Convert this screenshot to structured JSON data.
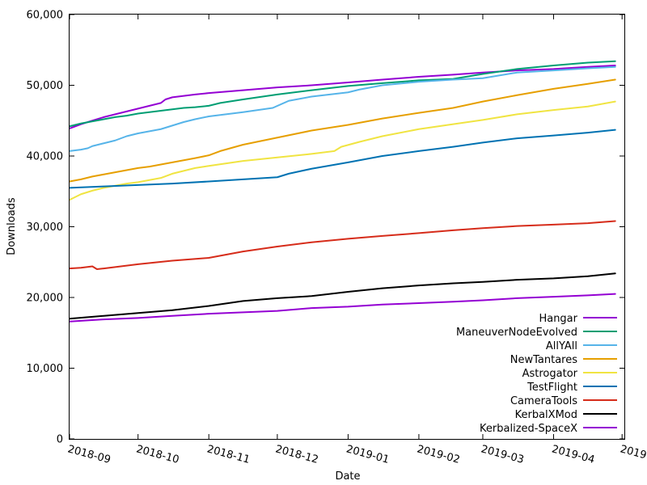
{
  "chart_data": {
    "type": "line",
    "title": "",
    "xlabel": "Date",
    "ylabel": "Downloads",
    "x_type": "date",
    "xlim": [
      "2018-08-31",
      "2019-05-01"
    ],
    "ylim": [
      0,
      60000
    ],
    "x_ticks": [
      {
        "value": "2018-08-31",
        "label": "2018-09"
      },
      {
        "value": "2018-09-30",
        "label": "2018-10"
      },
      {
        "value": "2018-10-31",
        "label": "2018-11"
      },
      {
        "value": "2018-11-30",
        "label": "2018-12"
      },
      {
        "value": "2018-12-31",
        "label": "2019-01"
      },
      {
        "value": "2019-01-31",
        "label": "2019-02"
      },
      {
        "value": "2019-02-28",
        "label": "2019-03"
      },
      {
        "value": "2019-03-31",
        "label": "2019-04"
      },
      {
        "value": "2019-04-30",
        "label": "2019"
      }
    ],
    "y_ticks": [
      {
        "value": 0,
        "label": "0"
      },
      {
        "value": 10000,
        "label": "10,000"
      },
      {
        "value": 20000,
        "label": "20,000"
      },
      {
        "value": 30000,
        "label": "30,000"
      },
      {
        "value": 40000,
        "label": "40,000"
      },
      {
        "value": 50000,
        "label": "50,000"
      },
      {
        "value": 60000,
        "label": "60,000"
      }
    ],
    "grid": false,
    "legend_position": "bottom-right",
    "series": [
      {
        "name": "Hangar",
        "color": "#9400d3",
        "x": [
          "2018-08-31",
          "2018-09-05",
          "2018-09-10",
          "2018-09-15",
          "2018-09-20",
          "2018-09-25",
          "2018-09-30",
          "2018-10-05",
          "2018-10-10",
          "2018-10-12",
          "2018-10-15",
          "2018-10-20",
          "2018-10-25",
          "2018-10-31",
          "2018-11-15",
          "2018-11-30",
          "2018-12-15",
          "2018-12-31",
          "2019-01-15",
          "2019-01-31",
          "2019-02-15",
          "2019-02-28",
          "2019-03-15",
          "2019-03-31",
          "2019-04-15",
          "2019-04-27"
        ],
        "y": [
          43900,
          44500,
          45000,
          45500,
          45900,
          46300,
          46700,
          47100,
          47500,
          48000,
          48300,
          48500,
          48700,
          48900,
          49300,
          49700,
          50000,
          50400,
          50800,
          51200,
          51500,
          51800,
          52100,
          52300,
          52600,
          52800
        ]
      },
      {
        "name": "ManeuverNodeEvolved",
        "color": "#009e73",
        "x": [
          "2018-08-31",
          "2018-09-05",
          "2018-09-10",
          "2018-09-15",
          "2018-09-20",
          "2018-09-25",
          "2018-09-30",
          "2018-10-05",
          "2018-10-10",
          "2018-10-15",
          "2018-10-20",
          "2018-10-25",
          "2018-10-31",
          "2018-11-05",
          "2018-11-15",
          "2018-11-30",
          "2018-12-15",
          "2018-12-31",
          "2019-01-15",
          "2019-01-31",
          "2019-02-15",
          "2019-02-28",
          "2019-03-15",
          "2019-03-31",
          "2019-04-15",
          "2019-04-27"
        ],
        "y": [
          44200,
          44600,
          44900,
          45200,
          45500,
          45700,
          46000,
          46200,
          46400,
          46600,
          46800,
          46900,
          47100,
          47500,
          48000,
          48700,
          49300,
          49900,
          50300,
          50700,
          50900,
          51600,
          52300,
          52800,
          53200,
          53400
        ]
      },
      {
        "name": "AllYAll",
        "color": "#56b4e9",
        "x": [
          "2018-08-31",
          "2018-09-05",
          "2018-09-08",
          "2018-09-10",
          "2018-09-15",
          "2018-09-20",
          "2018-09-25",
          "2018-09-30",
          "2018-10-05",
          "2018-10-10",
          "2018-10-15",
          "2018-10-20",
          "2018-10-25",
          "2018-10-31",
          "2018-11-15",
          "2018-11-28",
          "2018-12-05",
          "2018-12-15",
          "2018-12-31",
          "2019-01-05",
          "2019-01-15",
          "2019-01-31",
          "2019-02-15",
          "2019-02-28",
          "2019-03-15",
          "2019-03-31",
          "2019-04-15",
          "2019-04-27"
        ],
        "y": [
          40700,
          40900,
          41100,
          41400,
          41800,
          42200,
          42800,
          43200,
          43500,
          43800,
          44300,
          44800,
          45200,
          45600,
          46200,
          46800,
          47800,
          48400,
          49000,
          49400,
          50000,
          50500,
          50800,
          51000,
          51800,
          52100,
          52400,
          52600
        ]
      },
      {
        "name": "NewTantares",
        "color": "#e69f00",
        "x": [
          "2018-08-31",
          "2018-09-05",
          "2018-09-10",
          "2018-09-15",
          "2018-09-20",
          "2018-09-25",
          "2018-09-30",
          "2018-10-05",
          "2018-10-10",
          "2018-10-15",
          "2018-10-20",
          "2018-10-25",
          "2018-10-31",
          "2018-11-05",
          "2018-11-15",
          "2018-11-30",
          "2018-12-15",
          "2018-12-31",
          "2019-01-15",
          "2019-01-31",
          "2019-02-15",
          "2019-02-28",
          "2019-03-15",
          "2019-03-31",
          "2019-04-15",
          "2019-04-27"
        ],
        "y": [
          36400,
          36700,
          37100,
          37400,
          37700,
          38000,
          38300,
          38500,
          38800,
          39100,
          39400,
          39700,
          40100,
          40700,
          41600,
          42600,
          43600,
          44400,
          45300,
          46100,
          46800,
          47700,
          48600,
          49500,
          50200,
          50800
        ]
      },
      {
        "name": "Astrogator",
        "color": "#f0e442",
        "x": [
          "2018-08-31",
          "2018-09-05",
          "2018-09-10",
          "2018-09-15",
          "2018-09-20",
          "2018-09-25",
          "2018-09-30",
          "2018-10-05",
          "2018-10-10",
          "2018-10-15",
          "2018-10-20",
          "2018-10-25",
          "2018-10-31",
          "2018-11-15",
          "2018-11-30",
          "2018-12-15",
          "2018-12-25",
          "2018-12-28",
          "2019-01-05",
          "2019-01-15",
          "2019-01-31",
          "2019-02-15",
          "2019-02-28",
          "2019-03-15",
          "2019-03-31",
          "2019-04-15",
          "2019-04-27"
        ],
        "y": [
          33800,
          34600,
          35100,
          35500,
          35800,
          36100,
          36300,
          36600,
          36900,
          37500,
          37900,
          38300,
          38600,
          39300,
          39800,
          40300,
          40700,
          41300,
          42000,
          42800,
          43800,
          44500,
          45100,
          45900,
          46500,
          47000,
          47700
        ]
      },
      {
        "name": "TestFlight",
        "color": "#0072b2",
        "x": [
          "2018-08-31",
          "2018-09-15",
          "2018-09-30",
          "2018-10-15",
          "2018-10-31",
          "2018-11-15",
          "2018-11-30",
          "2018-12-05",
          "2018-12-15",
          "2018-12-31",
          "2019-01-15",
          "2019-01-31",
          "2019-02-15",
          "2019-02-28",
          "2019-03-15",
          "2019-03-31",
          "2019-04-15",
          "2019-04-27"
        ],
        "y": [
          35500,
          35700,
          35900,
          36100,
          36400,
          36700,
          37000,
          37500,
          38200,
          39100,
          40000,
          40700,
          41300,
          41900,
          42500,
          42900,
          43300,
          43700
        ]
      },
      {
        "name": "CameraTools",
        "color": "#d62c1a",
        "x": [
          "2018-08-31",
          "2018-09-05",
          "2018-09-10",
          "2018-09-12",
          "2018-09-15",
          "2018-09-20",
          "2018-09-30",
          "2018-10-15",
          "2018-10-31",
          "2018-11-15",
          "2018-11-30",
          "2018-12-15",
          "2018-12-31",
          "2019-01-15",
          "2019-01-31",
          "2019-02-15",
          "2019-02-28",
          "2019-03-15",
          "2019-03-31",
          "2019-04-15",
          "2019-04-27"
        ],
        "y": [
          24100,
          24200,
          24400,
          24000,
          24100,
          24300,
          24700,
          25200,
          25600,
          26500,
          27200,
          27800,
          28300,
          28700,
          29100,
          29500,
          29800,
          30100,
          30300,
          30500,
          30800
        ]
      },
      {
        "name": "KerbalXMod",
        "color": "#000000",
        "x": [
          "2018-08-31",
          "2018-09-15",
          "2018-09-30",
          "2018-10-15",
          "2018-10-31",
          "2018-11-15",
          "2018-11-30",
          "2018-12-15",
          "2018-12-31",
          "2019-01-15",
          "2019-01-31",
          "2019-02-15",
          "2019-02-28",
          "2019-03-15",
          "2019-03-31",
          "2019-04-15",
          "2019-04-27"
        ],
        "y": [
          17000,
          17400,
          17800,
          18200,
          18800,
          19500,
          19900,
          20200,
          20800,
          21300,
          21700,
          22000,
          22200,
          22500,
          22700,
          23000,
          23400
        ]
      },
      {
        "name": "Kerbalized-SpaceX",
        "color": "#9400d3",
        "x": [
          "2018-08-31",
          "2018-09-15",
          "2018-09-30",
          "2018-10-15",
          "2018-10-31",
          "2018-11-15",
          "2018-11-30",
          "2018-12-15",
          "2018-12-31",
          "2019-01-15",
          "2019-01-31",
          "2019-02-15",
          "2019-02-28",
          "2019-03-15",
          "2019-03-31",
          "2019-04-15",
          "2019-04-27"
        ],
        "y": [
          16600,
          16900,
          17100,
          17400,
          17700,
          17900,
          18100,
          18500,
          18700,
          19000,
          19200,
          19400,
          19600,
          19900,
          20100,
          20300,
          20500
        ]
      }
    ]
  }
}
